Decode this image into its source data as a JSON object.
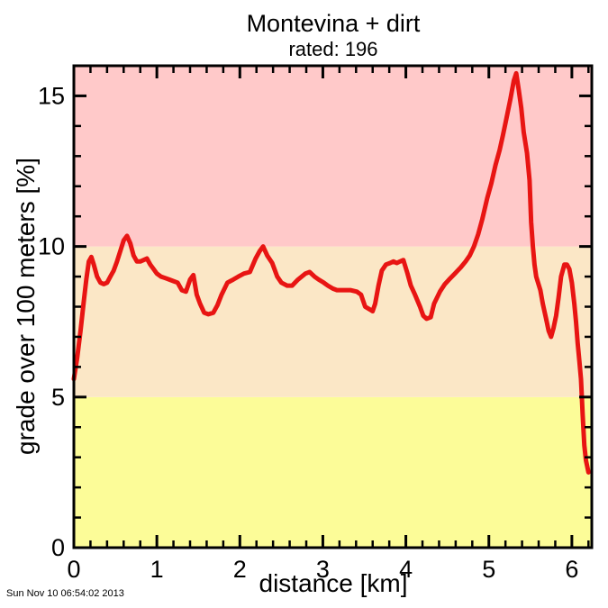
{
  "header": {
    "title": "Montevina + dirt",
    "subtitle": "rated: 196"
  },
  "footer": {
    "timestamp": "Sun Nov 10 06:54:02 2013"
  },
  "chart_data": {
    "type": "line",
    "title": "Montevina + dirt",
    "subtitle": "rated: 196",
    "xlabel": "distance [km]",
    "ylabel": "grade over 100 meters [%]",
    "xlim": [
      0,
      6.24
    ],
    "ylim": [
      0,
      16
    ],
    "x_major_ticks": [
      0,
      1,
      2,
      3,
      4,
      5,
      6
    ],
    "x_minor_step": 0.2,
    "y_major_ticks": [
      0,
      5,
      10,
      15
    ],
    "y_minor_step": 1,
    "grid": false,
    "legend": null,
    "line_color": "#e81513",
    "bands": [
      {
        "name": "low-0-5pct",
        "from": 0,
        "to": 5,
        "color": "#fcfc98"
      },
      {
        "name": "mid-5-10pct",
        "from": 5,
        "to": 10,
        "color": "#fbe7c6"
      },
      {
        "name": "high-10-16pct",
        "from": 10,
        "to": 16,
        "color": "#ffc9c9"
      }
    ],
    "series": [
      {
        "name": "grade",
        "x": [
          0.0,
          0.04,
          0.08,
          0.12,
          0.15,
          0.18,
          0.21,
          0.24,
          0.28,
          0.32,
          0.36,
          0.4,
          0.44,
          0.48,
          0.52,
          0.56,
          0.6,
          0.64,
          0.68,
          0.72,
          0.76,
          0.8,
          0.84,
          0.88,
          0.92,
          0.96,
          1.0,
          1.05,
          1.1,
          1.15,
          1.2,
          1.25,
          1.3,
          1.35,
          1.4,
          1.44,
          1.48,
          1.52,
          1.57,
          1.62,
          1.68,
          1.73,
          1.78,
          1.85,
          1.92,
          1.98,
          2.05,
          2.12,
          2.19,
          2.24,
          2.28,
          2.33,
          2.39,
          2.45,
          2.5,
          2.57,
          2.63,
          2.7,
          2.79,
          2.84,
          2.9,
          2.95,
          3.01,
          3.06,
          3.12,
          3.17,
          3.25,
          3.33,
          3.41,
          3.46,
          3.51,
          3.57,
          3.6,
          3.63,
          3.67,
          3.71,
          3.76,
          3.81,
          3.85,
          3.89,
          3.93,
          3.97,
          4.02,
          4.06,
          4.11,
          4.17,
          4.21,
          4.25,
          4.3,
          4.34,
          4.41,
          4.47,
          4.52,
          4.59,
          4.66,
          4.72,
          4.77,
          4.82,
          4.87,
          4.92,
          4.98,
          5.03,
          5.08,
          5.13,
          5.17,
          5.2,
          5.26,
          5.3,
          5.33,
          5.36,
          5.39,
          5.42,
          5.46,
          5.49,
          5.51,
          5.53,
          5.55,
          5.57,
          5.62,
          5.65,
          5.69,
          5.72,
          5.75,
          5.78,
          5.81,
          5.84,
          5.87,
          5.91,
          5.94,
          5.97,
          6.0,
          6.03,
          6.05,
          6.07,
          6.09,
          6.11,
          6.13,
          6.15,
          6.17,
          6.2
        ],
        "y": [
          5.6,
          6.3,
          7.2,
          8.2,
          8.9,
          9.5,
          9.65,
          9.4,
          9.0,
          8.8,
          8.75,
          8.8,
          9.0,
          9.2,
          9.5,
          9.85,
          10.2,
          10.35,
          10.1,
          9.7,
          9.5,
          9.5,
          9.55,
          9.6,
          9.4,
          9.25,
          9.1,
          9.0,
          8.95,
          8.9,
          8.85,
          8.8,
          8.55,
          8.5,
          8.9,
          9.05,
          8.4,
          8.1,
          7.8,
          7.75,
          7.8,
          8.05,
          8.4,
          8.8,
          8.9,
          9.0,
          9.1,
          9.15,
          9.6,
          9.85,
          10.0,
          9.7,
          9.45,
          9.0,
          8.8,
          8.7,
          8.7,
          8.9,
          9.1,
          9.15,
          9.0,
          8.9,
          8.8,
          8.7,
          8.6,
          8.55,
          8.55,
          8.55,
          8.5,
          8.4,
          8.0,
          7.9,
          7.85,
          8.1,
          8.7,
          9.2,
          9.4,
          9.45,
          9.5,
          9.45,
          9.5,
          9.55,
          9.1,
          8.7,
          8.4,
          8.0,
          7.7,
          7.6,
          7.65,
          8.1,
          8.5,
          8.75,
          8.9,
          9.1,
          9.3,
          9.5,
          9.7,
          10.0,
          10.4,
          10.9,
          11.6,
          12.1,
          12.7,
          13.2,
          13.7,
          14.1,
          14.9,
          15.5,
          15.75,
          15.2,
          14.6,
          13.8,
          13.1,
          12.2,
          10.8,
          10.0,
          9.4,
          9.0,
          8.55,
          8.1,
          7.6,
          7.2,
          7.0,
          7.3,
          7.7,
          8.3,
          9.0,
          9.4,
          9.4,
          9.25,
          8.8,
          8.1,
          7.5,
          6.8,
          6.2,
          5.6,
          4.4,
          3.4,
          2.9,
          2.5
        ]
      }
    ]
  }
}
